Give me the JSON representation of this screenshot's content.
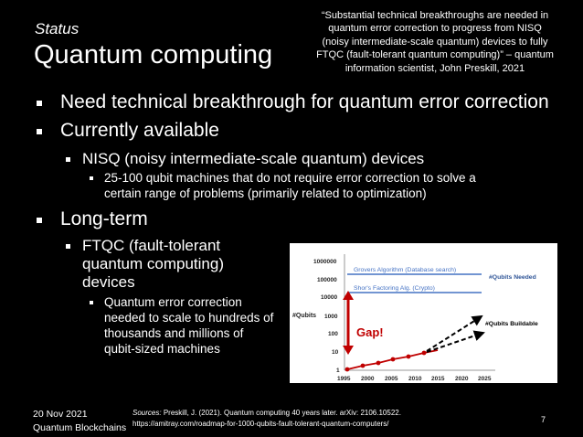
{
  "slide": {
    "status": "Status",
    "title": "Quantum computing",
    "quote": "“Substantial technical breakthroughs are needed in quantum error correction to progress from NISQ (noisy intermediate-scale quantum) devices to fully FTQC (fault-tolerant quantum computing)” – quantum information scientist, John Preskill, 2021",
    "bullets": {
      "b1": "Need technical breakthrough for quantum error correction",
      "b2": "Currently available",
      "b2_1": "NISQ (noisy intermediate-scale quantum) devices",
      "b2_1_1": "25-100 qubit machines that do not require error correction to solve a certain range of problems (primarily related to optimization)",
      "b3": "Long-term",
      "b3_1": "FTQC (fault-tolerant quantum computing) devices",
      "b3_1_1": "Quantum error correction needed to scale to hundreds of thousands and millions of qubit-sized machines"
    },
    "footer": {
      "date": "20 Nov 2021",
      "org": "Quantum Blockchains",
      "sources_label": "Sources:",
      "sources_text": "Preskill, J. (2021). Quantum computing 40 years later. arXiv: 2106.10522.",
      "sources_url": "https://amitray.com/roadmap-for-1000-qubits-fault-tolerant-quantum-computers/",
      "page": "7"
    }
  },
  "chart": {
    "y_ticks": [
      "1000000",
      "100000",
      "10000",
      "1000",
      "100",
      "10",
      "1"
    ],
    "x_ticks": [
      "1995",
      "2000",
      "2005",
      "2010",
      "2015",
      "2020",
      "2025"
    ],
    "ylabel": "#Qubits",
    "grovers": "Grovers Algorithm (Database search)",
    "shors": "Shor's Factoring Alg. (Crypto)",
    "needed": "#Qubits Needed",
    "buildable": "#Qubits Buildable",
    "gap": "Gap!",
    "colors": {
      "blue": "#4472c4",
      "red": "#c00000",
      "black": "#000000"
    }
  }
}
